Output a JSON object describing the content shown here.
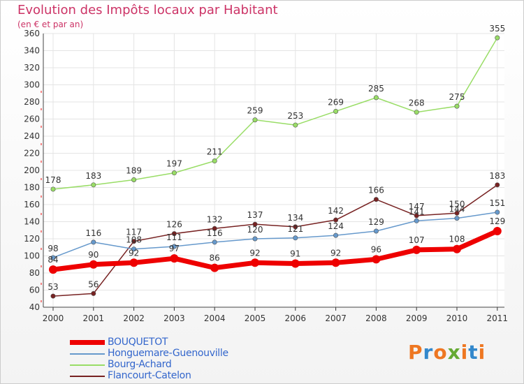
{
  "chart_data": {
    "type": "line",
    "title": "Evolution des Impôts locaux par Habitant",
    "subtitle": "(en € et par an)",
    "xlabel": "",
    "ylabel": "",
    "ylim": [
      40,
      360
    ],
    "yticks": [
      40,
      60,
      80,
      100,
      120,
      140,
      160,
      180,
      200,
      220,
      240,
      260,
      280,
      300,
      320,
      340,
      360
    ],
    "categories": [
      "2000",
      "2001",
      "2002",
      "2003",
      "2004",
      "2005",
      "2006",
      "2007",
      "2008",
      "2009",
      "2010",
      "2011"
    ],
    "grid": true,
    "legend_position": "bottom-left",
    "series": [
      {
        "name": "Flancourt-Catelon",
        "color": "#772222",
        "values": [
          53,
          56,
          117,
          126,
          132,
          137,
          134,
          142,
          166,
          147,
          150,
          183
        ],
        "labels": [
          "53",
          "56",
          "117",
          "126",
          "132",
          "137",
          "134",
          "142",
          "166",
          "147",
          "150",
          "183"
        ]
      },
      {
        "name": "Bourg-Achard",
        "color": "#99dd66",
        "values": [
          178,
          183,
          189,
          197,
          211,
          259,
          253,
          269,
          285,
          268,
          275,
          355
        ],
        "labels": [
          "178",
          "183",
          "189",
          "197",
          "211",
          "259",
          "253",
          "269",
          "285",
          "268",
          "275",
          "355"
        ]
      },
      {
        "name": "Honguemare-Guenouville",
        "color": "#6699cc",
        "values": [
          98,
          116,
          108,
          111,
          116,
          120,
          121,
          124,
          129,
          141,
          144,
          151
        ],
        "labels": [
          "98",
          "116",
          "108",
          "111",
          "116",
          "120",
          "121",
          "124",
          "129",
          "141",
          "144",
          "151"
        ]
      },
      {
        "name": "BOUQUETOT",
        "color": "#ee0000",
        "values": [
          84,
          90,
          92,
          97,
          86,
          92,
          91,
          92,
          96,
          107,
          108,
          129
        ],
        "labels": [
          "84",
          "90",
          "92",
          "97",
          "86",
          "92",
          "91",
          "92",
          "96",
          "107",
          "108",
          "129"
        ]
      }
    ],
    "legend": [
      "BOUQUETOT",
      "Honguemare-Guenouville",
      "Bourg-Achard",
      "Flancourt-Catelon"
    ]
  },
  "branding": {
    "logo_letters": [
      "P",
      "r",
      "o",
      "x",
      "i",
      "t",
      "i"
    ],
    "logo_colors": [
      "#ee7722",
      "#3388cc",
      "#ee7722",
      "#66aa33",
      "#ee7722",
      "#3388cc",
      "#ee7722"
    ],
    "logo_text": "Proxiti"
  }
}
